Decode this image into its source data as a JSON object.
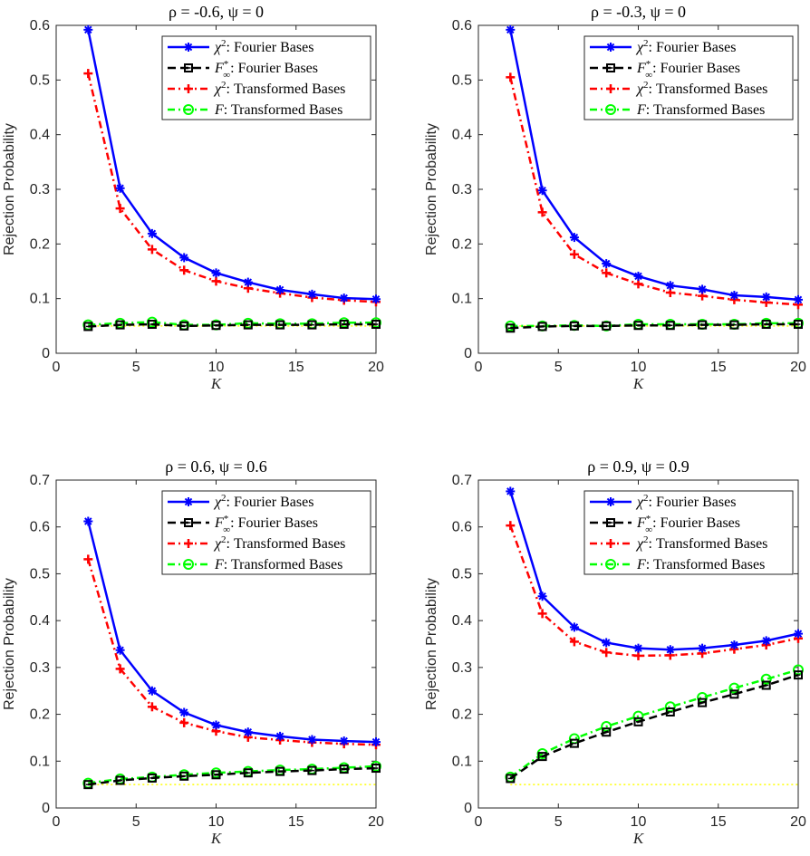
{
  "chart_data": [
    {
      "type": "line",
      "title": "ρ = -0.6, ψ = 0",
      "xlabel": "K",
      "ylabel": "Rejection Probability",
      "xlim": [
        0,
        20
      ],
      "ylim": [
        0,
        0.6
      ],
      "xticks": [
        "0",
        "5",
        "10",
        "15",
        "20"
      ],
      "yticks": [
        "0",
        "0.1",
        "0.2",
        "0.3",
        "0.4",
        "0.5",
        "0.6"
      ],
      "legend_position": "top-right",
      "x": [
        2,
        4,
        6,
        8,
        10,
        12,
        14,
        16,
        18,
        20
      ],
      "reference_line": {
        "value": 0.05,
        "color": "#ffff00"
      },
      "series": [
        {
          "name": "χ²: Fourier Bases",
          "color": "#0000ff",
          "style": "solid",
          "marker": "star",
          "values": [
            0.592,
            0.302,
            0.219,
            0.175,
            0.147,
            0.13,
            0.116,
            0.108,
            0.101,
            0.099
          ]
        },
        {
          "name": "F*∞: Fourier Bases",
          "color": "#000000",
          "style": "dashed",
          "marker": "square",
          "values": [
            0.049,
            0.052,
            0.053,
            0.05,
            0.051,
            0.052,
            0.052,
            0.052,
            0.053,
            0.053
          ]
        },
        {
          "name": "χ²: Transformed Bases",
          "color": "#ff0000",
          "style": "dashdot",
          "marker": "plus",
          "values": [
            0.512,
            0.265,
            0.19,
            0.152,
            0.132,
            0.119,
            0.11,
            0.102,
            0.097,
            0.094
          ]
        },
        {
          "name": "F: Transformed Bases",
          "color": "#00ff00",
          "style": "dashdot",
          "marker": "circle",
          "values": [
            0.052,
            0.055,
            0.057,
            0.052,
            0.052,
            0.055,
            0.054,
            0.054,
            0.056,
            0.056
          ]
        }
      ]
    },
    {
      "type": "line",
      "title": "ρ = -0.3, ψ = 0",
      "xlabel": "K",
      "ylabel": "Rejection Probability",
      "xlim": [
        0,
        20
      ],
      "ylim": [
        0,
        0.6
      ],
      "xticks": [
        "0",
        "5",
        "10",
        "15",
        "20"
      ],
      "yticks": [
        "0",
        "0.1",
        "0.2",
        "0.3",
        "0.4",
        "0.5",
        "0.6"
      ],
      "legend_position": "top-right",
      "x": [
        2,
        4,
        6,
        8,
        10,
        12,
        14,
        16,
        18,
        20
      ],
      "reference_line": {
        "value": 0.05,
        "color": "#ffff00"
      },
      "series": [
        {
          "name": "χ²: Fourier Bases",
          "color": "#0000ff",
          "style": "solid",
          "marker": "star",
          "values": [
            0.592,
            0.298,
            0.212,
            0.164,
            0.141,
            0.124,
            0.117,
            0.106,
            0.103,
            0.098
          ]
        },
        {
          "name": "F*∞: Fourier Bases",
          "color": "#000000",
          "style": "dashed",
          "marker": "square",
          "values": [
            0.046,
            0.049,
            0.05,
            0.05,
            0.051,
            0.051,
            0.052,
            0.052,
            0.053,
            0.053
          ]
        },
        {
          "name": "χ²: Transformed Bases",
          "color": "#ff0000",
          "style": "dashdot",
          "marker": "plus",
          "values": [
            0.505,
            0.258,
            0.181,
            0.147,
            0.127,
            0.111,
            0.105,
            0.098,
            0.093,
            0.089
          ]
        },
        {
          "name": "F: Transformed Bases",
          "color": "#00ff00",
          "style": "dashdot",
          "marker": "circle",
          "values": [
            0.05,
            0.05,
            0.051,
            0.05,
            0.053,
            0.053,
            0.053,
            0.053,
            0.055,
            0.055
          ]
        }
      ]
    },
    {
      "type": "line",
      "title": "ρ = 0.6, ψ = 0.6",
      "xlabel": "K",
      "ylabel": "Rejection Probability",
      "xlim": [
        0,
        20
      ],
      "ylim": [
        0,
        0.7
      ],
      "xticks": [
        "0",
        "5",
        "10",
        "15",
        "20"
      ],
      "yticks": [
        "0",
        "0.1",
        "0.2",
        "0.3",
        "0.4",
        "0.5",
        "0.6",
        "0.7"
      ],
      "legend_position": "top-right",
      "x": [
        2,
        4,
        6,
        8,
        10,
        12,
        14,
        16,
        18,
        20
      ],
      "reference_line": {
        "value": 0.05,
        "color": "#ffff00"
      },
      "series": [
        {
          "name": "χ²: Fourier Bases",
          "color": "#0000ff",
          "style": "solid",
          "marker": "star",
          "values": [
            0.612,
            0.337,
            0.25,
            0.204,
            0.177,
            0.162,
            0.153,
            0.146,
            0.143,
            0.141
          ]
        },
        {
          "name": "F*∞: Fourier Bases",
          "color": "#000000",
          "style": "dashed",
          "marker": "square",
          "values": [
            0.05,
            0.059,
            0.064,
            0.068,
            0.071,
            0.075,
            0.078,
            0.08,
            0.083,
            0.085
          ]
        },
        {
          "name": "χ²: Transformed Bases",
          "color": "#ff0000",
          "style": "dashdot",
          "marker": "plus",
          "values": [
            0.531,
            0.297,
            0.216,
            0.182,
            0.164,
            0.151,
            0.145,
            0.14,
            0.137,
            0.135
          ]
        },
        {
          "name": "F: Transformed Bases",
          "color": "#00ff00",
          "style": "dashdot",
          "marker": "circle",
          "values": [
            0.053,
            0.062,
            0.066,
            0.071,
            0.075,
            0.078,
            0.081,
            0.083,
            0.086,
            0.089
          ]
        }
      ]
    },
    {
      "type": "line",
      "title": "ρ = 0.9, ψ = 0.9",
      "xlabel": "K",
      "ylabel": "Rejection Probability",
      "xlim": [
        0,
        20
      ],
      "ylim": [
        0,
        0.7
      ],
      "xticks": [
        "0",
        "5",
        "10",
        "15",
        "20"
      ],
      "yticks": [
        "0",
        "0.1",
        "0.2",
        "0.3",
        "0.4",
        "0.5",
        "0.6",
        "0.7"
      ],
      "legend_position": "top-right",
      "x": [
        2,
        4,
        6,
        8,
        10,
        12,
        14,
        16,
        18,
        20
      ],
      "reference_line": {
        "value": 0.05,
        "color": "#ffff00"
      },
      "series": [
        {
          "name": "χ²: Fourier Bases",
          "color": "#0000ff",
          "style": "solid",
          "marker": "star",
          "values": [
            0.676,
            0.452,
            0.386,
            0.353,
            0.341,
            0.338,
            0.341,
            0.348,
            0.357,
            0.372
          ]
        },
        {
          "name": "F*∞: Fourier Bases",
          "color": "#000000",
          "style": "dashed",
          "marker": "square",
          "values": [
            0.063,
            0.11,
            0.138,
            0.162,
            0.184,
            0.205,
            0.225,
            0.243,
            0.262,
            0.284
          ]
        },
        {
          "name": "χ²: Transformed Bases",
          "color": "#ff0000",
          "style": "dashdot",
          "marker": "plus",
          "values": [
            0.603,
            0.415,
            0.355,
            0.332,
            0.325,
            0.326,
            0.33,
            0.339,
            0.348,
            0.362
          ]
        },
        {
          "name": "F: Transformed Bases",
          "color": "#00ff00",
          "style": "dashdot",
          "marker": "circle",
          "values": [
            0.066,
            0.116,
            0.148,
            0.174,
            0.196,
            0.216,
            0.236,
            0.256,
            0.275,
            0.295
          ]
        }
      ]
    }
  ]
}
